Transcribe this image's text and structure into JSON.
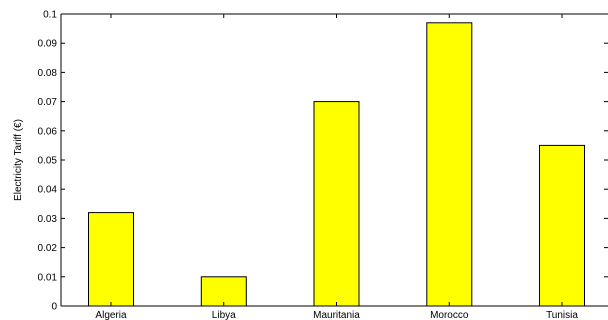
{
  "chart_data": {
    "type": "bar",
    "categories": [
      "Algeria",
      "Libya",
      "Mauritania",
      "Morocco",
      "Tunisia"
    ],
    "values": [
      0.032,
      0.01,
      0.07,
      0.097,
      0.055
    ],
    "title": "",
    "xlabel": "",
    "ylabel": "Electricity Tariff (€)",
    "ylim": [
      0,
      0.1
    ],
    "yticks": [
      "0",
      "0.01",
      "0.02",
      "0.03",
      "0.04",
      "0.05",
      "0.06",
      "0.07",
      "0.08",
      "0.09",
      "0.1"
    ],
    "bar_color": "#ffff00",
    "edge_color": "#000000",
    "grid": false,
    "legend": "none"
  }
}
